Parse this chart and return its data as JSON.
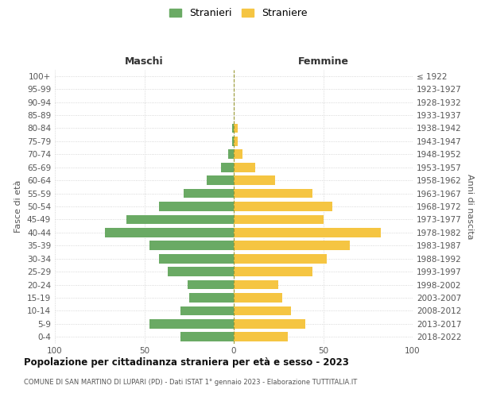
{
  "age_groups": [
    "0-4",
    "5-9",
    "10-14",
    "15-19",
    "20-24",
    "25-29",
    "30-34",
    "35-39",
    "40-44",
    "45-49",
    "50-54",
    "55-59",
    "60-64",
    "65-69",
    "70-74",
    "75-79",
    "80-84",
    "85-89",
    "90-94",
    "95-99",
    "100+"
  ],
  "birth_years": [
    "2018-2022",
    "2013-2017",
    "2008-2012",
    "2003-2007",
    "1998-2002",
    "1993-1997",
    "1988-1992",
    "1983-1987",
    "1978-1982",
    "1973-1977",
    "1968-1972",
    "1963-1967",
    "1958-1962",
    "1953-1957",
    "1948-1952",
    "1943-1947",
    "1938-1942",
    "1933-1937",
    "1928-1932",
    "1923-1927",
    "≤ 1922"
  ],
  "males": [
    30,
    47,
    30,
    25,
    26,
    37,
    42,
    47,
    72,
    60,
    42,
    28,
    15,
    7,
    3,
    1,
    1,
    0,
    0,
    0,
    0
  ],
  "females": [
    30,
    40,
    32,
    27,
    25,
    44,
    52,
    65,
    82,
    50,
    55,
    44,
    23,
    12,
    5,
    2,
    2,
    0,
    0,
    0,
    0
  ],
  "male_color": "#6aaa64",
  "female_color": "#f5c542",
  "title": "Popolazione per cittadinanza straniera per età e sesso - 2023",
  "subtitle": "COMUNE DI SAN MARTINO DI LUPARI (PD) - Dati ISTAT 1° gennaio 2023 - Elaborazione TUTTITALIA.IT",
  "legend_male": "Stranieri",
  "legend_female": "Straniere",
  "xlabel_left": "Maschi",
  "xlabel_right": "Femmine",
  "ylabel_left": "Fasce di età",
  "ylabel_right": "Anni di nascita",
  "xlim": 100,
  "background_color": "#ffffff",
  "grid_color": "#cccccc",
  "vline_color": "#999933"
}
